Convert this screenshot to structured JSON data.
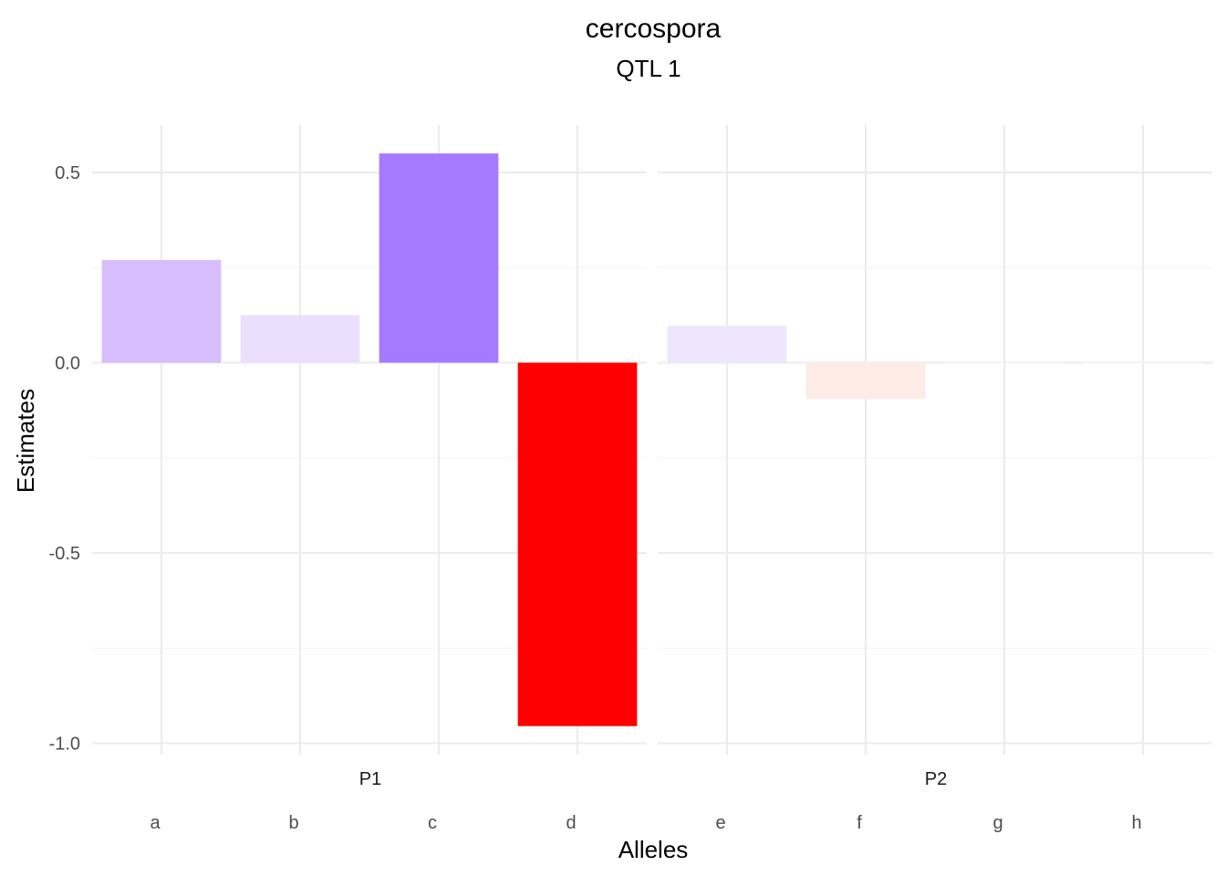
{
  "chart_data": {
    "type": "bar",
    "title": "cercospora",
    "subtitle": "QTL 1",
    "xlabel": "Alleles",
    "ylabel": "Estimates",
    "ylim": [
      -1.0,
      0.6
    ],
    "y_ticks": [
      -1.0,
      -0.5,
      0.0,
      0.5
    ],
    "y_tick_labels": [
      "-1.0",
      "-0.5",
      "0.0",
      "0.5"
    ],
    "grid": true,
    "legend": "none",
    "facets": [
      {
        "label": "P1",
        "categories": [
          "a",
          "b",
          "c",
          "d"
        ],
        "values": [
          0.27,
          0.125,
          0.55,
          -0.955
        ],
        "colors": [
          "#d7bdfc",
          "#ecdffd",
          "#a57aff",
          "#ff0000"
        ]
      },
      {
        "label": "P2",
        "categories": [
          "e",
          "f",
          "g",
          "h"
        ],
        "values": [
          0.097,
          -0.095,
          -0.002,
          -0.003
        ],
        "colors": [
          "#efe6fd",
          "#fdebe6",
          "#fdfdfd",
          "#fefcfb"
        ]
      }
    ]
  }
}
